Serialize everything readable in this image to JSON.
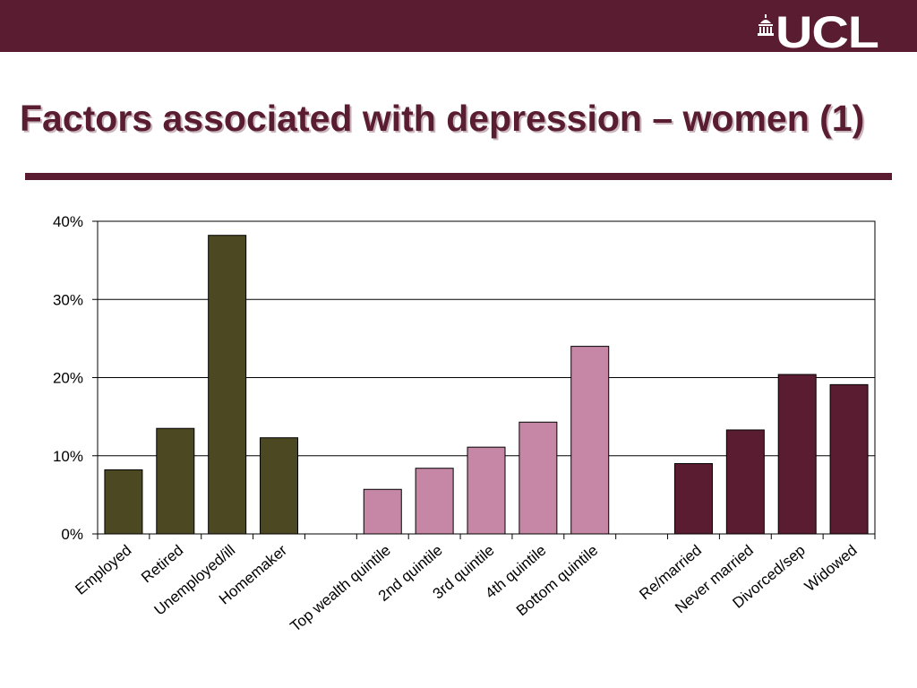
{
  "header": {
    "logo_text": "UCL",
    "logo_icon": "ucl-portico-icon"
  },
  "slide": {
    "title": "Factors associated with depression – women (1)"
  },
  "colors": {
    "brand": "#5a1c31",
    "employment": "#4b4822",
    "wealth": "#c687a6",
    "marital": "#5a1c31"
  },
  "chart_data": {
    "type": "bar",
    "title": "",
    "xlabel": "",
    "ylabel": "",
    "ylim": [
      0,
      40
    ],
    "yticks": [
      "0%",
      "10%",
      "20%",
      "30%",
      "40%"
    ],
    "grid": true,
    "legend": "none",
    "categories": [
      "Employed",
      "Retired",
      "Unemployed/ill",
      "Homemaker",
      "",
      "Top wealth quintile",
      "2nd quintile",
      "3rd quintile",
      "4th quintile",
      "Bottom quintile",
      "",
      "Re/married",
      "Never married",
      "Divorced/sep",
      "Widowed"
    ],
    "values": [
      8.2,
      13.5,
      38.2,
      12.3,
      null,
      5.7,
      8.4,
      11.1,
      14.3,
      24.0,
      null,
      9.0,
      13.3,
      20.4,
      19.1
    ],
    "groups": [
      "employment",
      "employment",
      "employment",
      "employment",
      null,
      "wealth",
      "wealth",
      "wealth",
      "wealth",
      "wealth",
      null,
      "marital",
      "marital",
      "marital",
      "marital"
    ]
  }
}
